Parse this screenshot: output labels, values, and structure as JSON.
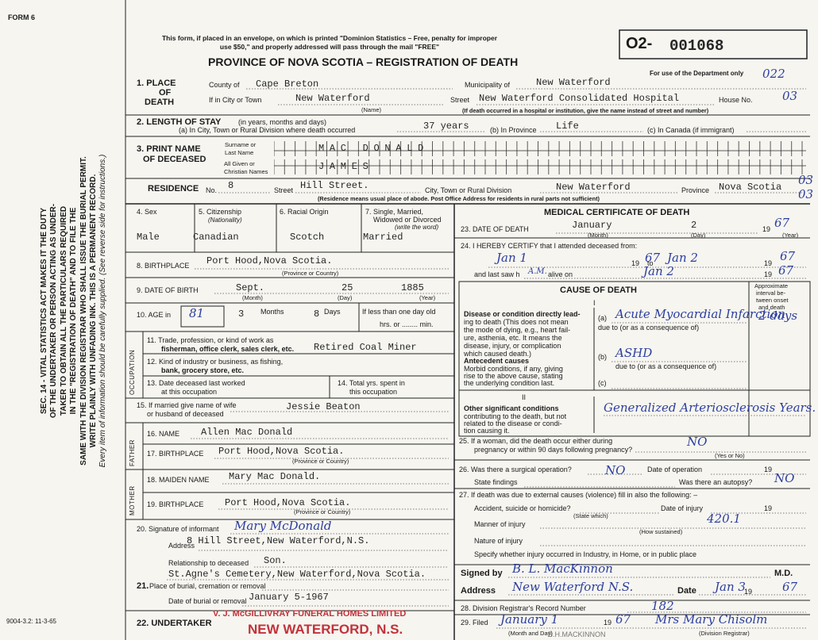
{
  "header": {
    "form_no": "FORM 6",
    "notice": [
      "This form, if placed in an envelope, on which is printed \"Dominion Statistics – Free, penalty for improper",
      "use $50,\" and properly addressed will pass through the mail \"FREE\""
    ],
    "title": "PROVINCE OF NOVA SCOTIA – REGISTRATION OF DEATH",
    "reg_prefix": "O2-",
    "reg_number": "001068",
    "dept_note": "For use of the Department only",
    "dept_codes": [
      "022",
      "03",
      "03",
      "03"
    ]
  },
  "side_notice": [
    "SEC. 14 - VITAL STATISTICS ACT MAKES IT THE DUTY",
    "OF THE UNDERTAKER OR PERSON ACTING AS UNDER-",
    "TAKER TO OBTAIN ALL THE PARTICULARS REQUIRED",
    "IN THE \"REGISTRATION OF DEATH\" AND TO FILE THE",
    "SAME WITH THE DIVISION REGISTRAR WHO SHALL ISSUE THE BURIAL PERMIT.",
    "WRITE PLAINLY WITH UNFADING INK. THIS IS A PERMANENT RECORD.",
    "Every item of information should be carefully supplied. (See reverse side for instructions.)"
  ],
  "footer_code": "9004-3.2: 11-3-65",
  "form": {
    "labels": [
      "1. PLACE",
      "OF",
      "DEATH",
      "County of",
      "Municipality of",
      "If in City or Town",
      "(Name)",
      "Street",
      "House No.",
      "(If death occurred in a hospital or institution, give the name instead of street and number)",
      "2. LENGTH OF STAY",
      "(in years, months and days)",
      "(a) In City, Town or Rural Division where death occurred",
      "(b) In Province",
      "(c) In Canada (if immigrant)",
      "3. PRINT NAME",
      "OF DECEASED",
      "Surname or",
      "Last Name",
      "All Given or",
      "Christian Names",
      "RESIDENCE",
      "No.",
      "Street",
      "City, Town or Rural Division",
      "Province",
      "(Residence means usual place of abode. Post Office Address for residents in rural parts not sufficient)",
      "4. Sex",
      "5. Citizenship",
      "(Nationality)",
      "6. Racial Origin",
      "7. Single, Married,",
      "Widowed or Divorced",
      "(write the word)",
      "8. BIRTHPLACE",
      "(Province or Country)",
      "9. DATE OF BIRTH",
      "(Month)",
      "(Day)",
      "(Year)",
      "10. AGE in",
      "Months",
      "Days",
      "If less than one day old",
      "hrs. or ........ min.",
      "OCCUPATION",
      "11. Trade, profession, or kind of work as",
      "fisherman, office clerk, sales clerk, etc.",
      "12. Kind of industry or business, as fishing,",
      "bank, grocery store, etc.",
      "13. Date deceased last worked",
      "at this occupation",
      "14. Total yrs. spent in",
      "this occupation",
      "15. If married give name of wife",
      "or husband of deceased",
      "FATHER",
      "16. NAME",
      "17. BIRTHPLACE",
      "(Province or Country)",
      "MOTHER",
      "18. MAIDEN NAME",
      "19. BIRTHPLACE",
      "(Province or Country)",
      "20. Signature of informant",
      "Address",
      "Relationship to deceased",
      "21.",
      "Place of burial, cremation or removal",
      "Date of burial or removal",
      "22. UNDERTAKER",
      "MEDICAL CERTIFICATE OF DEATH",
      "23. DATE OF DEATH",
      "19",
      "(Month)",
      "(Day)",
      "(Year)",
      "24. I HEREBY CERTIFY that I attended deceased from:",
      "19",
      "to",
      "19",
      "and last saw h",
      "alive on",
      "19",
      "CAUSE OF DEATH",
      "Approximate",
      "interval be-",
      "tween onset",
      "and death",
      "I",
      "Disease or condition directly lead-",
      "ing to death (This does not mean",
      "the mode of dying, e.g., heart fail-",
      "ure, asthenia, etc. It means the",
      "disease, injury, or complication",
      "which caused death.)",
      "(a)",
      "due to (or as a consequence of)",
      "Antecedent causes",
      "Morbid conditions, if any, giving",
      "rise to the above cause, stating",
      "the underlying condition last.",
      "(b)",
      "due to (or as a consequence of)",
      "(c)",
      "II",
      "Other significant conditions",
      "contributing to the death, but not",
      "related to the disease or condi-",
      "tion causing it.",
      "25. If a woman, did the death occur either during",
      "pregnancy or within 90 days following pregnancy?",
      "(Yes or No)",
      "26. Was there a surgical operation?",
      "Date of operation",
      "19",
      "State findings",
      "Was there an autopsy?",
      "27. If death was due to external causes (violence) fill in also the following: –",
      "Accident, suicide or homicide?",
      "Date of injury",
      "19",
      "(State which)",
      "Manner of injury",
      "(How sustained)",
      "Nature of injury",
      "Specify whether injury occurred in Industry, in Home, or in public place",
      "Signed by",
      "M.D.",
      "Address",
      "Date",
      "19",
      "28. Division Registrar's Record Number",
      "29. Filed",
      "19",
      "(Month and Day)",
      "(Division Registrar)"
    ],
    "typed": [
      "Cape Breton",
      "New Waterford",
      "New Waterford",
      "New Waterford Consolidated Hospital",
      "37 years",
      "Life",
      "MAC DONALD",
      "JAMES",
      "8",
      "Hill Street.",
      "New Waterford",
      "Nova Scotia",
      "Male",
      "Canadian",
      "Scotch",
      "Married",
      "Port Hood,Nova Scotia.",
      "Sept.",
      "25",
      "1885",
      "3",
      "8",
      "Retired Coal Miner",
      "Jessie Beaton",
      "Allen Mac Donald",
      "Port Hood,Nova Scotia.",
      "Mary Mac Donald.",
      "Port Hood,Nova Scotia.",
      "8 Hill Street,New Waterford,N.S.",
      "Son.",
      "St.Agne's Cemetery,New Waterford,Nova Scotia.",
      "January 5-1967",
      "January",
      "2"
    ],
    "handwritten": [
      "81",
      "67",
      "Jan 1",
      "67",
      "Jan 2",
      "67",
      "A.M.",
      "Jan 2",
      "67",
      "Acute Myocardial Infarction",
      "2 days",
      "ASHD",
      "Generalized Arteriosclerosis Years.",
      "NO",
      "NO",
      "NO",
      "420.1",
      "B. L. MacKinnon",
      "New Waterford N.S.",
      "Jan 3",
      "67",
      "182",
      "January 1",
      "67",
      "Mrs Mary Chisolm",
      "Mary McDonald"
    ],
    "stamps": [
      "V. J. McGILLIVRAY FUNERAL HOMES LIMITED",
      "NEW WATERFORD, N.S.",
      "B.H.MACKINNON"
    ]
  }
}
